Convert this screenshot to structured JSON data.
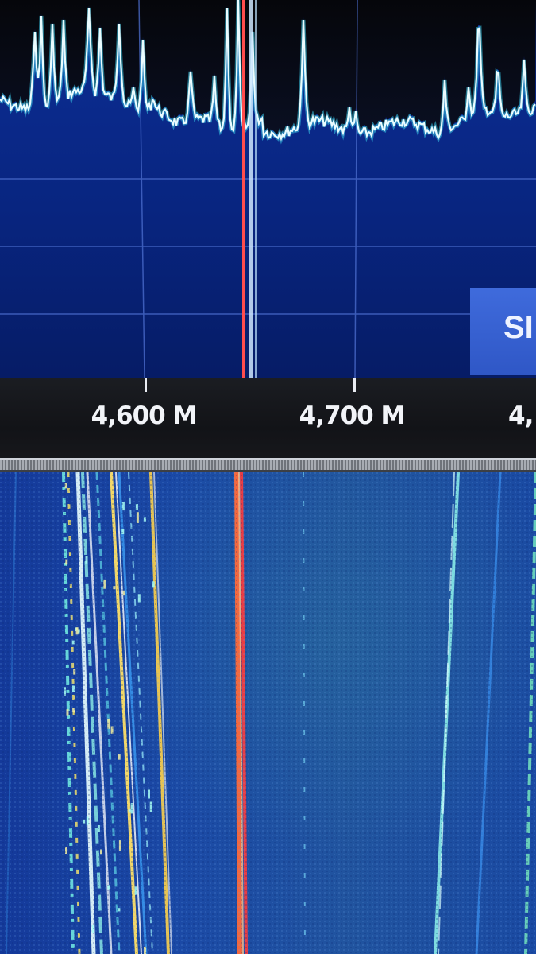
{
  "spectrum_panel": {
    "background_color": "#0a2a8a",
    "trace_color": "#e6fbff",
    "marker_color": "#ff4d4d"
  },
  "frequency_axis": {
    "labels": [
      "4,600 M",
      "4,700 M",
      "4,"
    ]
  },
  "side_button": {
    "label": "SI"
  },
  "waterfall_panel": {
    "background_color": "#1a4fa8",
    "marker_color": "#ff5533"
  }
}
